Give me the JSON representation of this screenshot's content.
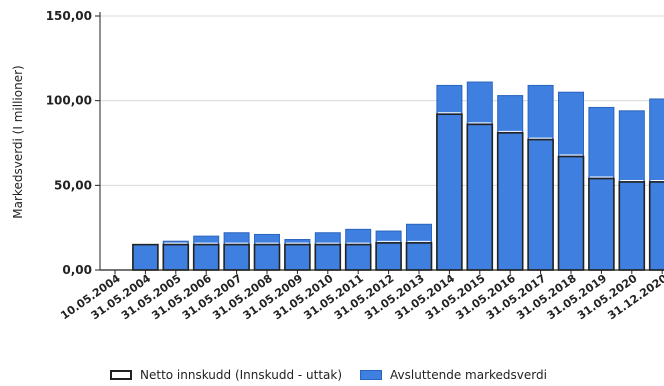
{
  "chart_data": {
    "type": "bar",
    "title": "",
    "xlabel": "",
    "ylabel": "Markedsverdi (I millioner)",
    "ylim": [
      0,
      150
    ],
    "y_ticks": [
      "0,00",
      "50,00",
      "100,00",
      "150,00"
    ],
    "grid": true,
    "legend_position": "bottom",
    "categories": [
      "10.05.2004",
      "31.05.2004",
      "31.05.2005",
      "31.05.2006",
      "31.05.2007",
      "31.05.2008",
      "31.05.2009",
      "31.05.2010",
      "31.05.2011",
      "31.05.2012",
      "31.05.2013",
      "31.05.2014",
      "31.05.2015",
      "31.05.2016",
      "31.05.2017",
      "31.05.2018",
      "31.05.2019",
      "31.05.2020",
      "31.12.2020"
    ],
    "series": [
      {
        "name": "Netto innskudd (Innskudd - uttak)",
        "color": "#222222",
        "values": [
          0,
          15,
          15,
          15,
          15,
          15,
          15,
          15,
          15,
          16,
          16,
          92,
          86,
          81,
          77,
          67,
          54,
          52,
          52
        ]
      },
      {
        "name": "Avsluttende markedsverdi",
        "color": "#3f7fe0",
        "values": [
          0,
          15,
          17,
          20,
          22,
          21,
          18,
          22,
          24,
          23,
          27,
          109,
          111,
          103,
          109,
          105,
          96,
          94,
          101
        ]
      }
    ]
  }
}
